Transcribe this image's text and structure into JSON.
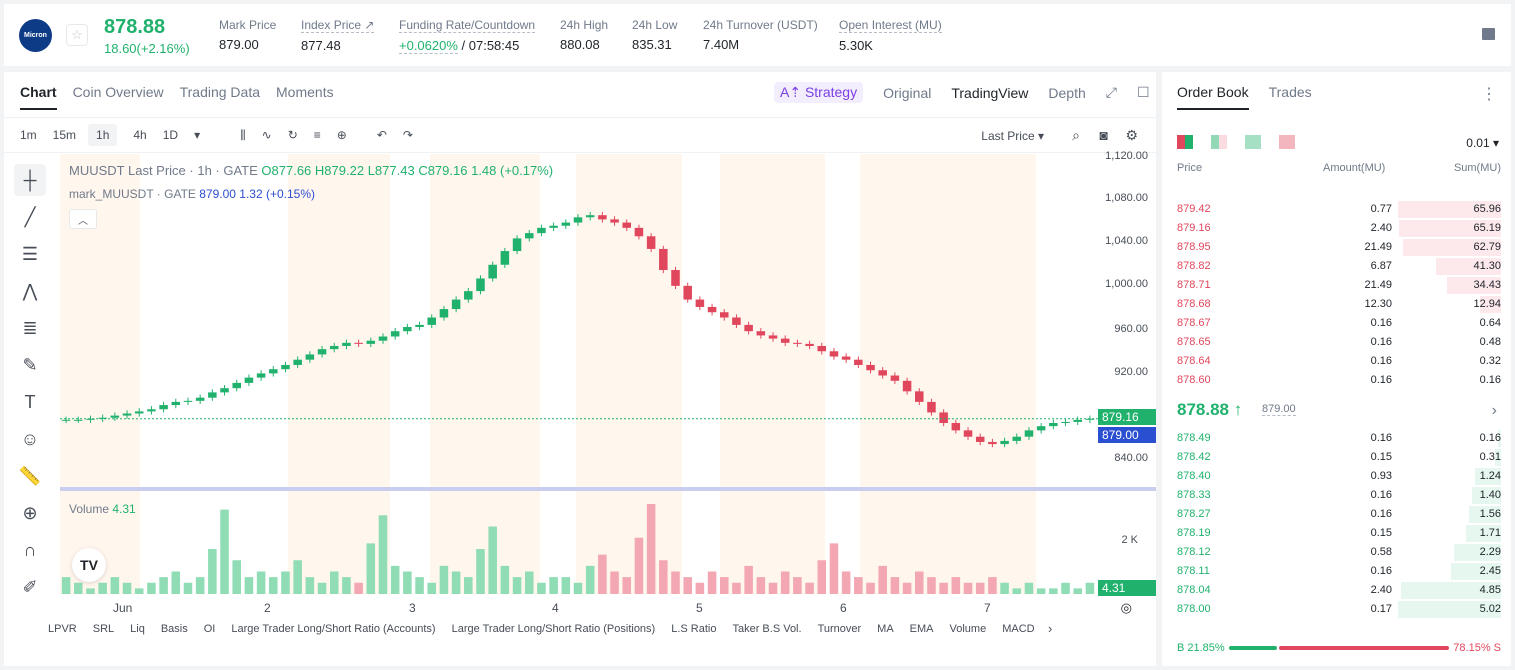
{
  "header": {
    "logo_text": "Micron",
    "last_price": "878.88",
    "change": "18.60(+2.16%)",
    "stats": [
      {
        "label": "Mark Price",
        "value": "879.00"
      },
      {
        "label": "Index Price ↗",
        "value": "877.48"
      },
      {
        "label": "Funding Rate/Countdown",
        "value_rate": "+0.0620%",
        "value_cd": " / 07:58:45"
      },
      {
        "label": "24h High",
        "value": "880.08"
      },
      {
        "label": "24h Low",
        "value": "835.31"
      },
      {
        "label": "24h Turnover (USDT)",
        "value": "7.40M"
      },
      {
        "label": "Open Interest (MU)",
        "value": "5.30K"
      }
    ]
  },
  "chart_tabs": [
    "Chart",
    "Coin Overview",
    "Trading Data",
    "Moments"
  ],
  "view_tabs": {
    "strategy": "A⇡ Strategy",
    "original": "Original",
    "tradingview": "TradingView",
    "depth": "Depth"
  },
  "timeframes": [
    "1m",
    "15m",
    "1h",
    "4h",
    "1D"
  ],
  "price_source": "Last Price ▾",
  "legend": {
    "line1_name": "MUUSDT Last Price · 1h · GATE",
    "open": "O877.66",
    "high": "H879.22",
    "low": "L877.43",
    "close": "C879.16",
    "change": "1.48 (+0.17%)",
    "line2_name": "mark_MUUSDT · GATE",
    "mark_val": "879.00",
    "mark_chg": "1.32 (+0.15%)",
    "volume_label": "Volume",
    "volume_val": "4.31"
  },
  "price_axis": [
    "1,120.00",
    "1,080.00",
    "1,040.00",
    "1,000.00",
    "960.00",
    "920.00",
    "840.00"
  ],
  "price_tags": {
    "last": "879.16",
    "mark": "879.00",
    "volume": "4.31",
    "vol_axis": "2 K"
  },
  "x_axis": [
    "Jun",
    "2",
    "3",
    "4",
    "5",
    "6",
    "7"
  ],
  "indicators": [
    "LPVR",
    "SRL",
    "Liq",
    "Basis",
    "OI",
    "Large Trader Long/Short Ratio (Accounts)",
    "Large Trader Long/Short Ratio (Positions)",
    "L.S Ratio",
    "Taker B.S Vol.",
    "Turnover",
    "MA",
    "EMA",
    "Volume",
    "MACD"
  ],
  "orderbook": {
    "tabs": [
      "Order Book",
      "Trades"
    ],
    "precision": "0.01 ▾",
    "headers": {
      "price": "Price",
      "amount": "Amount(MU)",
      "sum": "Sum(MU)"
    },
    "asks": [
      {
        "price": "879.42",
        "amount": "0.77",
        "sum": "65.96",
        "depth": 1.0
      },
      {
        "price": "879.16",
        "amount": "2.40",
        "sum": "65.19",
        "depth": 0.99
      },
      {
        "price": "878.95",
        "amount": "21.49",
        "sum": "62.79",
        "depth": 0.95
      },
      {
        "price": "878.82",
        "amount": "6.87",
        "sum": "41.30",
        "depth": 0.63
      },
      {
        "price": "878.71",
        "amount": "21.49",
        "sum": "34.43",
        "depth": 0.52
      },
      {
        "price": "878.68",
        "amount": "12.30",
        "sum": "12.94",
        "depth": 0.2
      },
      {
        "price": "878.67",
        "amount": "0.16",
        "sum": "0.64",
        "depth": 0.0
      },
      {
        "price": "878.65",
        "amount": "0.16",
        "sum": "0.48",
        "depth": 0.0
      },
      {
        "price": "878.64",
        "amount": "0.16",
        "sum": "0.32",
        "depth": 0.0
      },
      {
        "price": "878.60",
        "amount": "0.16",
        "sum": "0.16",
        "depth": 0.0
      }
    ],
    "mid_price": "878.88 ↑",
    "mid_mark": "879.00",
    "bids": [
      {
        "price": "878.49",
        "amount": "0.16",
        "sum": "0.16",
        "depth": 0.03
      },
      {
        "price": "878.42",
        "amount": "0.15",
        "sum": "0.31",
        "depth": 0.06
      },
      {
        "price": "878.40",
        "amount": "0.93",
        "sum": "1.24",
        "depth": 0.25
      },
      {
        "price": "878.33",
        "amount": "0.16",
        "sum": "1.40",
        "depth": 0.28
      },
      {
        "price": "878.27",
        "amount": "0.16",
        "sum": "1.56",
        "depth": 0.31
      },
      {
        "price": "878.19",
        "amount": "0.15",
        "sum": "1.71",
        "depth": 0.34
      },
      {
        "price": "878.12",
        "amount": "0.58",
        "sum": "2.29",
        "depth": 0.46
      },
      {
        "price": "878.11",
        "amount": "0.16",
        "sum": "2.45",
        "depth": 0.49
      },
      {
        "price": "878.04",
        "amount": "2.40",
        "sum": "4.85",
        "depth": 0.97
      },
      {
        "price": "878.00",
        "amount": "0.17",
        "sum": "5.02",
        "depth": 1.0
      }
    ],
    "buy_ratio": "B 21.85%",
    "sell_ratio": "78.15% S",
    "buy_fraction": 0.2185,
    "colors": {
      "ask": "#e0475d",
      "bid": "#20b26c"
    }
  },
  "chart_data": {
    "type": "candlestick",
    "y_range": [
      820,
      1130
    ],
    "close_series": [
      878,
      878,
      879,
      880,
      882,
      884,
      886,
      888,
      892,
      895,
      896,
      899,
      904,
      908,
      913,
      918,
      922,
      926,
      930,
      935,
      940,
      945,
      948,
      951,
      950,
      953,
      957,
      962,
      966,
      968,
      975,
      983,
      992,
      1000,
      1012,
      1025,
      1038,
      1050,
      1055,
      1060,
      1062,
      1065,
      1070,
      1072,
      1068,
      1065,
      1060,
      1052,
      1040,
      1020,
      1005,
      992,
      985,
      980,
      975,
      968,
      962,
      958,
      955,
      951,
      950,
      948,
      943,
      938,
      935,
      930,
      925,
      920,
      915,
      905,
      895,
      885,
      875,
      868,
      862,
      857,
      855,
      858,
      862,
      868,
      872,
      875,
      876,
      878,
      879
    ],
    "volume_series": [
      3,
      2,
      1,
      2,
      3,
      2,
      1,
      2,
      3,
      4,
      2,
      3,
      8,
      15,
      6,
      3,
      4,
      3,
      4,
      6,
      3,
      2,
      4,
      3,
      2,
      9,
      14,
      5,
      4,
      3,
      2,
      5,
      4,
      3,
      8,
      12,
      5,
      3,
      4,
      2,
      3,
      3,
      2,
      5,
      7,
      4,
      3,
      10,
      16,
      6,
      4,
      3,
      2,
      4,
      3,
      2,
      5,
      3,
      2,
      4,
      3,
      2,
      6,
      9,
      4,
      3,
      2,
      5,
      3,
      2,
      4,
      3,
      2,
      3,
      2,
      2,
      3,
      2,
      1,
      2,
      1,
      1,
      2,
      1,
      2
    ]
  }
}
